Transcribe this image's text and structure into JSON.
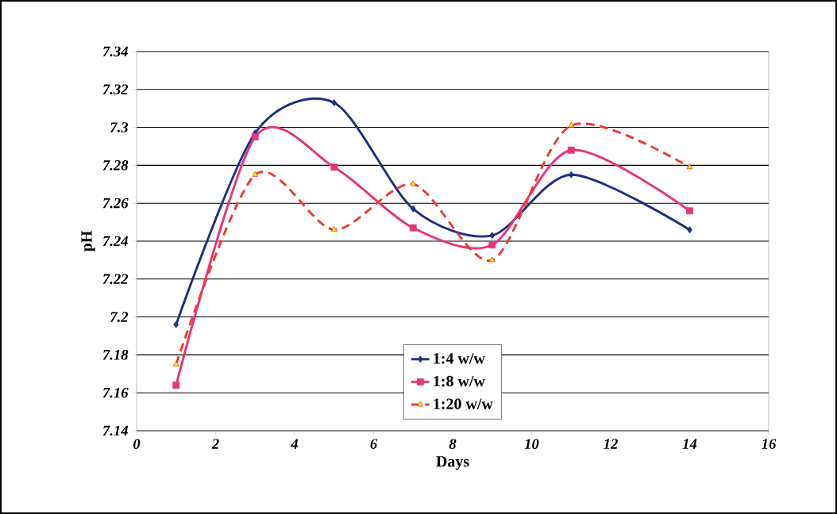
{
  "chart_data": {
    "type": "line",
    "xlabel": "Days",
    "ylabel": "pH",
    "x": [
      1,
      3,
      5,
      7,
      9,
      11,
      14
    ],
    "series": [
      {
        "name": "1:4 w/w",
        "color": "#1f2f80",
        "marker": "diamond",
        "line_style": "solid",
        "values": [
          7.196,
          7.297,
          7.313,
          7.257,
          7.243,
          7.275,
          7.246
        ]
      },
      {
        "name": "1:8 w/w",
        "color": "#e8357a",
        "marker": "square",
        "line_style": "solid",
        "values": [
          7.164,
          7.295,
          7.279,
          7.247,
          7.238,
          7.288,
          7.256
        ]
      },
      {
        "name": "1:20 w/w",
        "color": "#ee3b30",
        "marker": "triangle",
        "line_style": "dashed",
        "values": [
          7.175,
          7.275,
          7.246,
          7.27,
          7.23,
          7.301,
          7.279
        ]
      }
    ],
    "xlim": [
      0,
      16
    ],
    "xticks": [
      0,
      2,
      4,
      6,
      8,
      10,
      12,
      14,
      16
    ],
    "ylim": [
      7.14,
      7.34
    ],
    "yticks": [
      7.14,
      7.16,
      7.18,
      7.2,
      7.22,
      7.24,
      7.26,
      7.28,
      7.3,
      7.32,
      7.34
    ],
    "grid": "y",
    "legend": "bottom"
  }
}
